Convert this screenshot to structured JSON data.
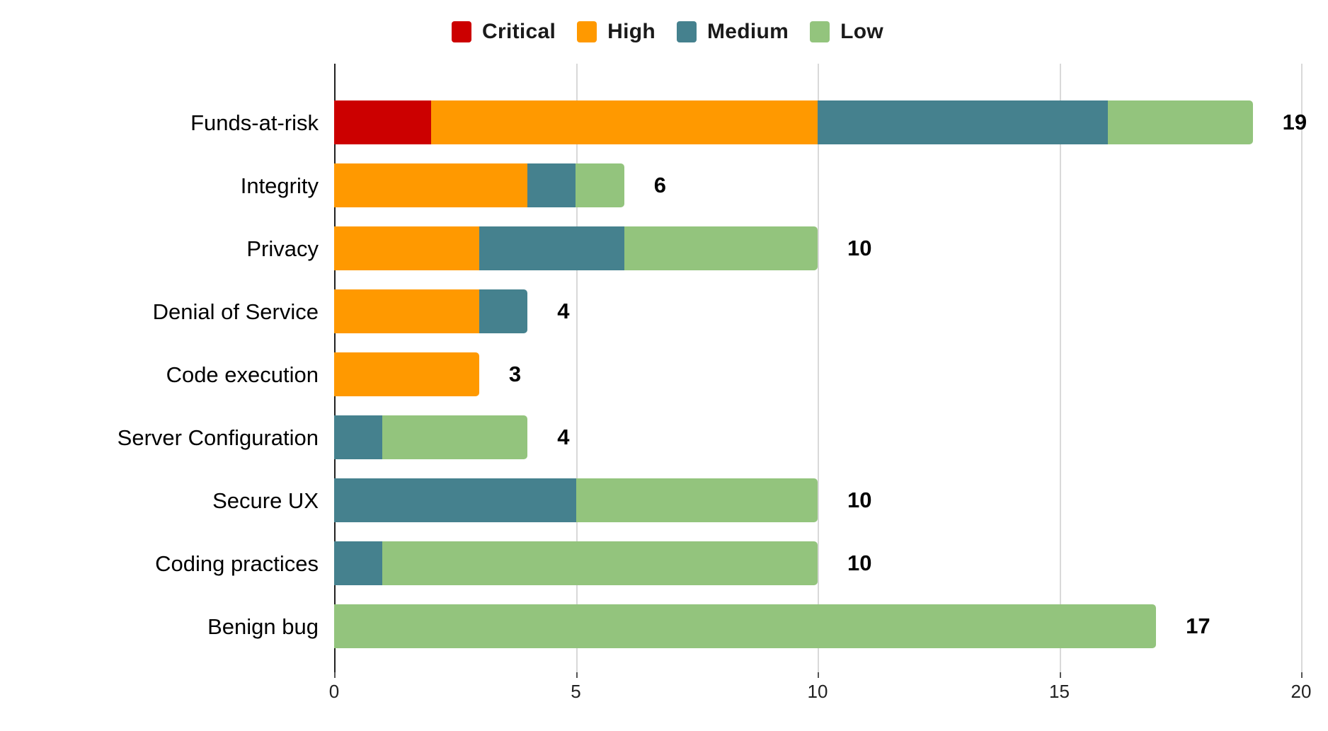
{
  "chart_data": {
    "type": "bar",
    "orientation": "horizontal",
    "stacked": true,
    "categories": [
      "Funds-at-risk",
      "Integrity",
      "Privacy",
      "Denial of Service",
      "Code execution",
      "Server Configuration",
      "Secure UX",
      "Coding practices",
      "Benign bug"
    ],
    "series": [
      {
        "name": "Critical",
        "color": "#cc0000",
        "values": [
          2,
          0,
          0,
          0,
          0,
          0,
          0,
          0,
          0
        ]
      },
      {
        "name": "High",
        "color": "#ff9900",
        "values": [
          8,
          4,
          3,
          3,
          3,
          0,
          0,
          0,
          0
        ]
      },
      {
        "name": "Medium",
        "color": "#45818e",
        "values": [
          6,
          1,
          3,
          1,
          0,
          1,
          5,
          1,
          0
        ]
      },
      {
        "name": "Low",
        "color": "#93c47d",
        "values": [
          3,
          1,
          4,
          0,
          0,
          3,
          5,
          9,
          17
        ]
      }
    ],
    "totals": [
      19,
      6,
      10,
      4,
      3,
      4,
      10,
      10,
      17
    ],
    "xlabel": "",
    "ylabel": "",
    "xlim": [
      0,
      20
    ],
    "xticks": [
      0,
      5,
      10,
      15,
      20
    ],
    "grid": "vertical-gridlines-on",
    "legend_position": "top",
    "legend": [
      {
        "label": "Critical",
        "color": "#cc0000"
      },
      {
        "label": "High",
        "color": "#ff9900"
      },
      {
        "label": "Medium",
        "color": "#45818e"
      },
      {
        "label": "Low",
        "color": "#93c47d"
      }
    ],
    "colors": {
      "gridline": "#d9d9d9",
      "axis_line": "#212121",
      "label_text": "#000000",
      "tick_text": "#222222"
    }
  }
}
